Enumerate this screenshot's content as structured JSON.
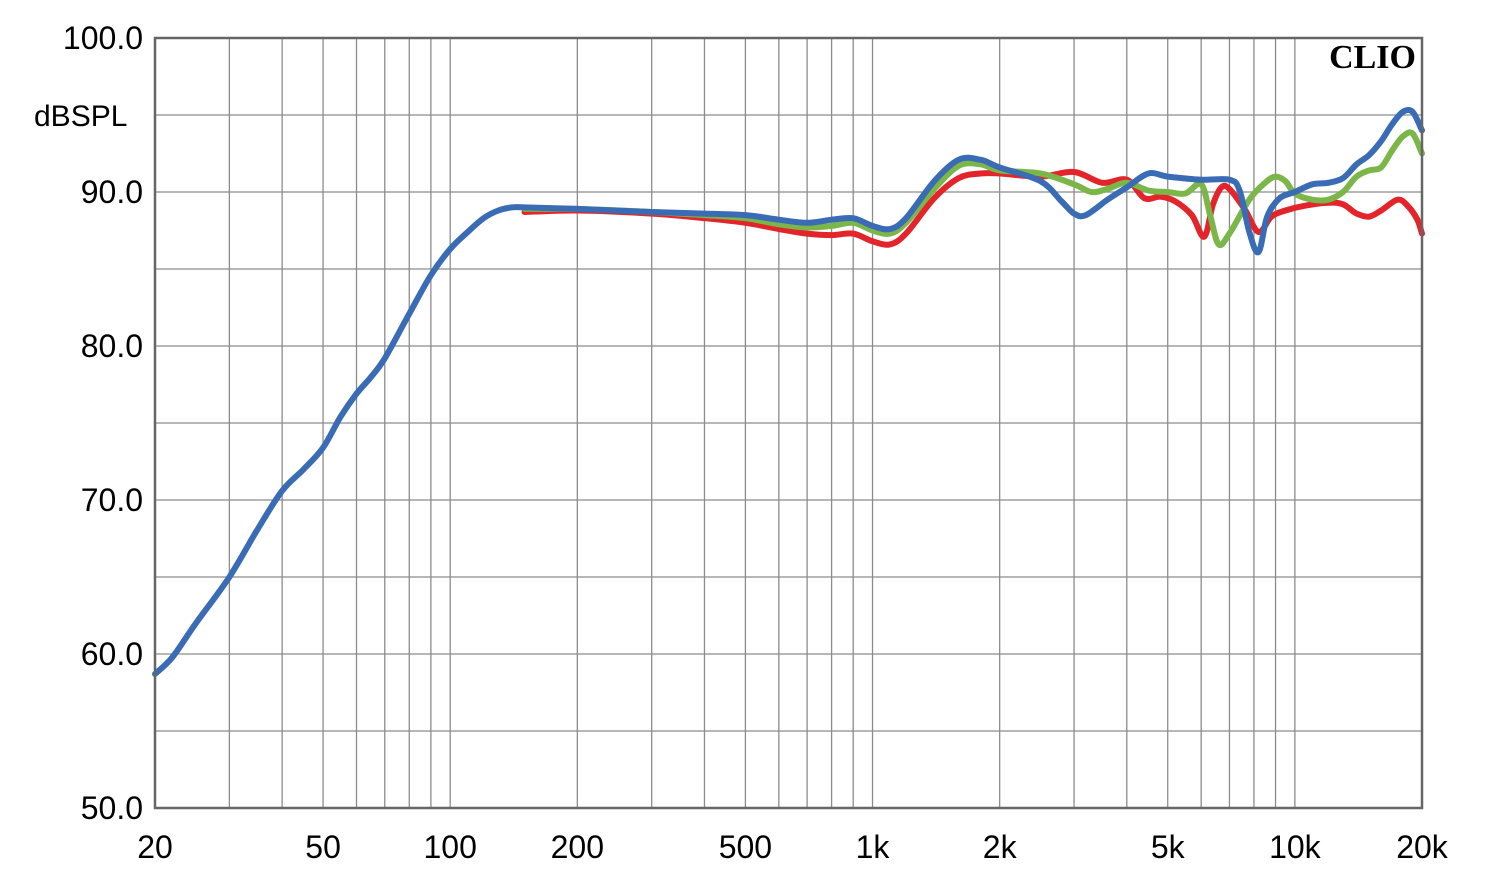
{
  "chart_data": {
    "type": "line",
    "title": "",
    "xlabel": "",
    "ylabel": "dBSPL",
    "brand": "CLIO",
    "x_scale": "log",
    "xlim": [
      20,
      20000
    ],
    "ylim": [
      50,
      100
    ],
    "grid": true,
    "x_ticks": [
      {
        "value": 20,
        "label": "20"
      },
      {
        "value": 50,
        "label": "50"
      },
      {
        "value": 100,
        "label": "100"
      },
      {
        "value": 200,
        "label": "200"
      },
      {
        "value": 500,
        "label": "500"
      },
      {
        "value": 1000,
        "label": "1k"
      },
      {
        "value": 2000,
        "label": "2k"
      },
      {
        "value": 5000,
        "label": "5k"
      },
      {
        "value": 10000,
        "label": "10k"
      },
      {
        "value": 20000,
        "label": "20k"
      }
    ],
    "y_ticks": [
      {
        "value": 100,
        "label": "100.0"
      },
      {
        "value": 90,
        "label": "90.0"
      },
      {
        "value": 80,
        "label": "80.0"
      },
      {
        "value": 70,
        "label": "70.0"
      },
      {
        "value": 60,
        "label": "60.0"
      },
      {
        "value": 50,
        "label": "50.0"
      }
    ],
    "series": [
      {
        "color": "#e3242b",
        "points": [
          [
            150,
            88.7
          ],
          [
            200,
            88.8
          ],
          [
            300,
            88.6
          ],
          [
            400,
            88.3
          ],
          [
            500,
            88.0
          ],
          [
            600,
            87.6
          ],
          [
            700,
            87.3
          ],
          [
            800,
            87.2
          ],
          [
            900,
            87.3
          ],
          [
            1000,
            86.8
          ],
          [
            1100,
            86.6
          ],
          [
            1200,
            87.3
          ],
          [
            1400,
            89.6
          ],
          [
            1600,
            90.9
          ],
          [
            1800,
            91.2
          ],
          [
            2000,
            91.2
          ],
          [
            2500,
            91.0
          ],
          [
            3000,
            91.3
          ],
          [
            3500,
            90.6
          ],
          [
            4000,
            90.8
          ],
          [
            4400,
            89.6
          ],
          [
            4800,
            89.7
          ],
          [
            5200,
            89.4
          ],
          [
            5700,
            88.5
          ],
          [
            6100,
            87.1
          ],
          [
            6400,
            89.2
          ],
          [
            6700,
            90.3
          ],
          [
            7000,
            90.2
          ],
          [
            7600,
            88.9
          ],
          [
            8200,
            87.4
          ],
          [
            8800,
            88.4
          ],
          [
            9500,
            88.8
          ],
          [
            10500,
            89.1
          ],
          [
            12000,
            89.3
          ],
          [
            13000,
            89.2
          ],
          [
            14000,
            88.6
          ],
          [
            15000,
            88.4
          ],
          [
            16000,
            88.8
          ],
          [
            17500,
            89.5
          ],
          [
            18500,
            89.1
          ],
          [
            19500,
            88.2
          ],
          [
            20000,
            87.3
          ]
        ]
      },
      {
        "color": "#7ab648",
        "points": [
          [
            150,
            88.9
          ],
          [
            200,
            88.9
          ],
          [
            300,
            88.7
          ],
          [
            400,
            88.5
          ],
          [
            500,
            88.3
          ],
          [
            600,
            87.9
          ],
          [
            700,
            87.7
          ],
          [
            800,
            87.8
          ],
          [
            900,
            88.0
          ],
          [
            1000,
            87.5
          ],
          [
            1100,
            87.3
          ],
          [
            1200,
            88.0
          ],
          [
            1400,
            90.2
          ],
          [
            1600,
            91.7
          ],
          [
            1800,
            91.8
          ],
          [
            2000,
            91.4
          ],
          [
            2500,
            91.2
          ],
          [
            3000,
            90.5
          ],
          [
            3300,
            90.0
          ],
          [
            3600,
            90.2
          ],
          [
            4000,
            90.6
          ],
          [
            4500,
            90.1
          ],
          [
            5000,
            90.0
          ],
          [
            5500,
            89.9
          ],
          [
            6000,
            90.5
          ],
          [
            6300,
            88.5
          ],
          [
            6600,
            86.6
          ],
          [
            7000,
            87.3
          ],
          [
            7800,
            89.5
          ],
          [
            8500,
            90.6
          ],
          [
            9000,
            91.0
          ],
          [
            9500,
            90.7
          ],
          [
            10000,
            89.9
          ],
          [
            11000,
            89.5
          ],
          [
            12000,
            89.5
          ],
          [
            13000,
            90.0
          ],
          [
            14000,
            91.0
          ],
          [
            15000,
            91.4
          ],
          [
            16000,
            91.6
          ],
          [
            17000,
            92.7
          ],
          [
            18000,
            93.6
          ],
          [
            19000,
            93.8
          ],
          [
            20000,
            92.5
          ]
        ]
      },
      {
        "color": "#3a6cb5",
        "points": [
          [
            20,
            58.7
          ],
          [
            22,
            59.8
          ],
          [
            25,
            62.0
          ],
          [
            30,
            65.0
          ],
          [
            35,
            68.1
          ],
          [
            40,
            70.6
          ],
          [
            45,
            72.0
          ],
          [
            50,
            73.4
          ],
          [
            55,
            75.4
          ],
          [
            60,
            76.9
          ],
          [
            65,
            78.0
          ],
          [
            70,
            79.2
          ],
          [
            80,
            82.1
          ],
          [
            90,
            84.6
          ],
          [
            100,
            86.3
          ],
          [
            110,
            87.4
          ],
          [
            120,
            88.3
          ],
          [
            130,
            88.8
          ],
          [
            140,
            89.0
          ],
          [
            150,
            89.0
          ],
          [
            200,
            88.9
          ],
          [
            300,
            88.7
          ],
          [
            400,
            88.6
          ],
          [
            500,
            88.5
          ],
          [
            600,
            88.2
          ],
          [
            700,
            88.0
          ],
          [
            800,
            88.2
          ],
          [
            900,
            88.3
          ],
          [
            1000,
            87.8
          ],
          [
            1100,
            87.6
          ],
          [
            1200,
            88.3
          ],
          [
            1400,
            90.7
          ],
          [
            1600,
            92.1
          ],
          [
            1800,
            92.1
          ],
          [
            2000,
            91.6
          ],
          [
            2500,
            90.7
          ],
          [
            2800,
            89.4
          ],
          [
            3000,
            88.6
          ],
          [
            3200,
            88.5
          ],
          [
            3600,
            89.5
          ],
          [
            4000,
            90.3
          ],
          [
            4500,
            91.2
          ],
          [
            5000,
            91.0
          ],
          [
            6000,
            90.8
          ],
          [
            7000,
            90.8
          ],
          [
            7400,
            90.1
          ],
          [
            7800,
            87.4
          ],
          [
            8200,
            86.1
          ],
          [
            8600,
            88.4
          ],
          [
            9200,
            89.6
          ],
          [
            10000,
            90.0
          ],
          [
            11000,
            90.5
          ],
          [
            12000,
            90.6
          ],
          [
            13000,
            90.9
          ],
          [
            14000,
            91.8
          ],
          [
            15000,
            92.4
          ],
          [
            16000,
            93.3
          ],
          [
            17000,
            94.4
          ],
          [
            18000,
            95.2
          ],
          [
            19000,
            95.2
          ],
          [
            20000,
            94.0
          ]
        ]
      }
    ]
  }
}
